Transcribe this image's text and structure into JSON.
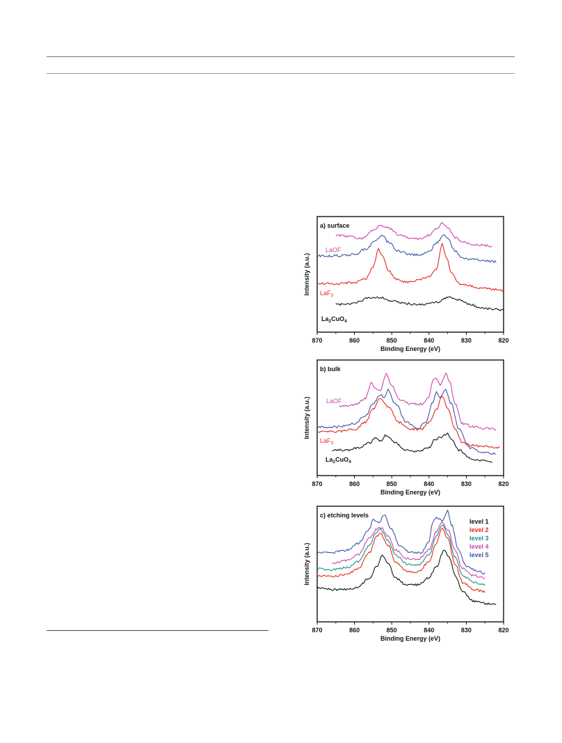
{
  "chart_data": [
    {
      "type": "line",
      "panel_label": "a) surface",
      "xlabel": "Binding Energy (eV)",
      "ylabel": "Intensity (a.u.)",
      "xlim": [
        870,
        820
      ],
      "x_reversed": true,
      "xticks": [
        "870",
        "860",
        "850",
        "840",
        "830",
        "820"
      ],
      "legend": "inline labels",
      "series": [
        {
          "name": "LaOF",
          "color": "#cc44aa",
          "label_visible": true,
          "x": [
            865,
            862,
            858,
            855,
            853,
            851,
            848,
            845,
            842,
            840,
            838,
            836.5,
            835,
            833,
            831,
            828,
            825,
            823
          ],
          "y": [
            0.84,
            0.83,
            0.81,
            0.88,
            0.93,
            0.9,
            0.84,
            0.81,
            0.81,
            0.84,
            0.89,
            0.94,
            0.9,
            0.82,
            0.78,
            0.76,
            0.75,
            0.74
          ]
        },
        {
          "name": "",
          "color": "#3a55a6",
          "label_visible": false,
          "x": [
            870,
            865,
            860,
            857,
            854,
            852.5,
            851,
            848,
            845,
            842,
            840,
            838,
            836,
            835,
            833,
            831,
            829,
            826,
            822
          ],
          "y": [
            0.66,
            0.66,
            0.67,
            0.72,
            0.8,
            0.84,
            0.78,
            0.7,
            0.67,
            0.67,
            0.7,
            0.77,
            0.85,
            0.81,
            0.7,
            0.64,
            0.63,
            0.62,
            0.61
          ]
        },
        {
          "name": "LaF3",
          "color": "#e8261c",
          "label_visible": true,
          "x": [
            870,
            865,
            860,
            857,
            855,
            853.5,
            852.5,
            851,
            849,
            846,
            843,
            840,
            838,
            836.5,
            835.5,
            834,
            832,
            829,
            826,
            823,
            820
          ],
          "y": [
            0.42,
            0.42,
            0.43,
            0.46,
            0.56,
            0.72,
            0.66,
            0.54,
            0.46,
            0.43,
            0.45,
            0.48,
            0.54,
            0.76,
            0.66,
            0.52,
            0.42,
            0.4,
            0.38,
            0.37,
            0.36
          ]
        },
        {
          "name": "La2CuO4",
          "color": "#111111",
          "label_visible": true,
          "x": [
            865,
            862,
            859,
            856,
            853,
            850,
            847,
            844,
            841,
            838,
            835,
            832,
            829,
            826,
            823,
            820
          ],
          "y": [
            0.24,
            0.24,
            0.26,
            0.3,
            0.3,
            0.27,
            0.25,
            0.24,
            0.24,
            0.26,
            0.3,
            0.28,
            0.24,
            0.21,
            0.2,
            0.19
          ]
        }
      ]
    },
    {
      "type": "line",
      "panel_label": "b) bulk",
      "xlabel": "Binding Energy (eV)",
      "ylabel": "Intensity (a.u.)",
      "xlim": [
        870,
        820
      ],
      "x_reversed": true,
      "xticks": [
        "870",
        "860",
        "850",
        "840",
        "830",
        "820"
      ],
      "legend": "inline labels",
      "series": [
        {
          "name": "LaOF",
          "color": "#cc44aa",
          "label_visible": true,
          "x": [
            864,
            860,
            857,
            855.5,
            854.5,
            853,
            851.5,
            850,
            848,
            845,
            842,
            840,
            839,
            838,
            837,
            835.5,
            834.5,
            833,
            831,
            828,
            825,
            822
          ],
          "y": [
            0.6,
            0.61,
            0.67,
            0.8,
            0.76,
            0.74,
            0.88,
            0.78,
            0.66,
            0.62,
            0.62,
            0.68,
            0.82,
            0.84,
            0.78,
            0.88,
            0.82,
            0.62,
            0.45,
            0.42,
            0.41,
            0.4
          ]
        },
        {
          "name": "",
          "color": "#3a55a6",
          "label_visible": false,
          "x": [
            870,
            865,
            860,
            857,
            855,
            853,
            852,
            851,
            849,
            846,
            843,
            841,
            839,
            838,
            837,
            835.5,
            834,
            832,
            829,
            826,
            822
          ],
          "y": [
            0.42,
            0.42,
            0.45,
            0.52,
            0.62,
            0.7,
            0.68,
            0.74,
            0.62,
            0.46,
            0.4,
            0.46,
            0.63,
            0.72,
            0.68,
            0.74,
            0.62,
            0.4,
            0.24,
            0.2,
            0.19
          ]
        },
        {
          "name": "LaF3",
          "color": "#e8261c",
          "label_visible": true,
          "x": [
            870,
            865,
            860,
            857,
            855,
            853,
            851,
            848,
            845,
            842,
            840,
            838,
            836.5,
            835,
            833,
            831,
            828,
            825,
            821
          ],
          "y": [
            0.38,
            0.38,
            0.4,
            0.46,
            0.58,
            0.67,
            0.6,
            0.46,
            0.4,
            0.4,
            0.46,
            0.57,
            0.69,
            0.58,
            0.4,
            0.28,
            0.26,
            0.25,
            0.24
          ]
        },
        {
          "name": "La2CuO4",
          "color": "#111111",
          "label_visible": true,
          "x": [
            866,
            862,
            859,
            856,
            854.5,
            853,
            851.5,
            849,
            846,
            843,
            840,
            838.5,
            837,
            835,
            834,
            832,
            829,
            826,
            823
          ],
          "y": [
            0.22,
            0.22,
            0.24,
            0.28,
            0.33,
            0.3,
            0.35,
            0.28,
            0.22,
            0.21,
            0.24,
            0.31,
            0.33,
            0.36,
            0.32,
            0.22,
            0.15,
            0.13,
            0.12
          ]
        }
      ]
    },
    {
      "type": "line",
      "panel_label": "c) etching levels",
      "xlabel": "Binding Energy (eV)",
      "ylabel": "Intensity (a.u.)",
      "xlim": [
        870,
        820
      ],
      "x_reversed": true,
      "xticks": [
        "870",
        "860",
        "850",
        "840",
        "830",
        "820"
      ],
      "legend": "top-right",
      "series": [
        {
          "name": "level 1",
          "color": "#111111",
          "x": [
            870,
            866,
            862,
            859,
            856,
            854,
            852.5,
            851,
            849,
            846,
            843,
            840,
            838,
            836,
            834.5,
            833,
            831,
            828,
            825,
            822
          ],
          "y": [
            0.3,
            0.28,
            0.28,
            0.3,
            0.38,
            0.48,
            0.58,
            0.5,
            0.38,
            0.32,
            0.32,
            0.38,
            0.48,
            0.62,
            0.56,
            0.4,
            0.26,
            0.18,
            0.16,
            0.15
          ]
        },
        {
          "name": "level 2",
          "color": "#e8261c",
          "x": [
            870,
            866,
            862,
            859,
            856,
            854,
            853,
            851,
            849,
            846,
            843,
            840,
            838,
            836.5,
            835,
            833,
            831,
            828,
            825
          ],
          "y": [
            0.4,
            0.39,
            0.41,
            0.46,
            0.6,
            0.74,
            0.76,
            0.66,
            0.52,
            0.44,
            0.43,
            0.52,
            0.68,
            0.82,
            0.72,
            0.5,
            0.34,
            0.28,
            0.26
          ]
        },
        {
          "name": "level 3",
          "color": "#17928a",
          "x": [
            870,
            866,
            862,
            859,
            856,
            854,
            853,
            851,
            849,
            846,
            843,
            840,
            838,
            836.5,
            835,
            833,
            831,
            828,
            825
          ],
          "y": [
            0.46,
            0.45,
            0.47,
            0.52,
            0.66,
            0.78,
            0.8,
            0.7,
            0.58,
            0.5,
            0.49,
            0.58,
            0.74,
            0.84,
            0.76,
            0.56,
            0.4,
            0.34,
            0.32
          ]
        },
        {
          "name": "level 4",
          "color": "#cc44aa",
          "x": [
            866,
            862,
            859,
            856,
            854,
            853,
            851,
            849,
            846,
            843,
            840,
            838,
            836.5,
            835,
            833,
            831,
            828,
            825
          ],
          "y": [
            0.51,
            0.53,
            0.58,
            0.72,
            0.8,
            0.82,
            0.74,
            0.62,
            0.55,
            0.54,
            0.62,
            0.78,
            0.86,
            0.8,
            0.62,
            0.46,
            0.4,
            0.38
          ]
        },
        {
          "name": "level 5",
          "color": "#3a55a6",
          "x": [
            870,
            866,
            862,
            859,
            856,
            855,
            853.5,
            852,
            850,
            848,
            845,
            842,
            840,
            839,
            838,
            836.5,
            835,
            834,
            832,
            830,
            827,
            825
          ],
          "y": [
            0.6,
            0.6,
            0.62,
            0.68,
            0.8,
            0.88,
            0.86,
            0.92,
            0.8,
            0.66,
            0.6,
            0.6,
            0.7,
            0.86,
            0.9,
            0.88,
            0.96,
            0.84,
            0.62,
            0.48,
            0.44,
            0.42
          ]
        }
      ]
    }
  ]
}
